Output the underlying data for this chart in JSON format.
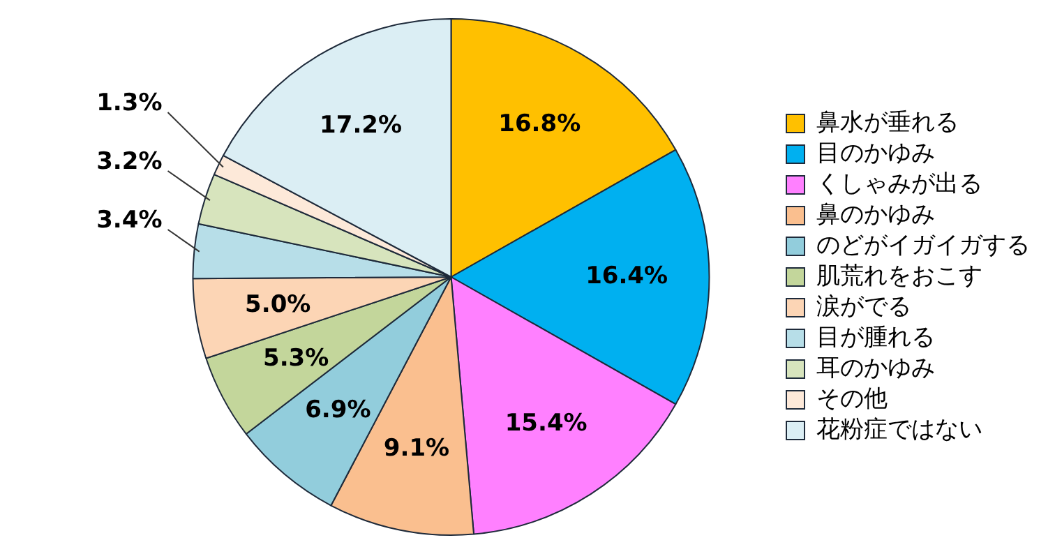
{
  "chart_data": {
    "type": "pie",
    "categories": [
      "鼻水が垂れる",
      "目のかゆみ",
      "くしゃみが出る",
      "鼻のかゆみ",
      "のどがイガイガする",
      "肌荒れをおこす",
      "涙がでる",
      "目が腫れる",
      "耳のかゆみ",
      "その他",
      "花粉症ではない"
    ],
    "values": [
      16.8,
      16.4,
      15.4,
      9.1,
      6.9,
      5.3,
      5.0,
      3.4,
      3.2,
      1.3,
      17.2
    ],
    "value_labels": [
      "16.8%",
      "16.4%",
      "15.4%",
      "9.1%",
      "6.9%",
      "5.3%",
      "5.0%",
      "3.4%",
      "3.2%",
      "1.3%",
      "17.2%"
    ],
    "colors": [
      "#ffc000",
      "#00b0f0",
      "#ff80ff",
      "#fabf8f",
      "#92cddc",
      "#c3d69b",
      "#fcd5b5",
      "#b7dee8",
      "#d7e4bd",
      "#fde9d9",
      "#dbeef4"
    ],
    "legend": "right"
  }
}
